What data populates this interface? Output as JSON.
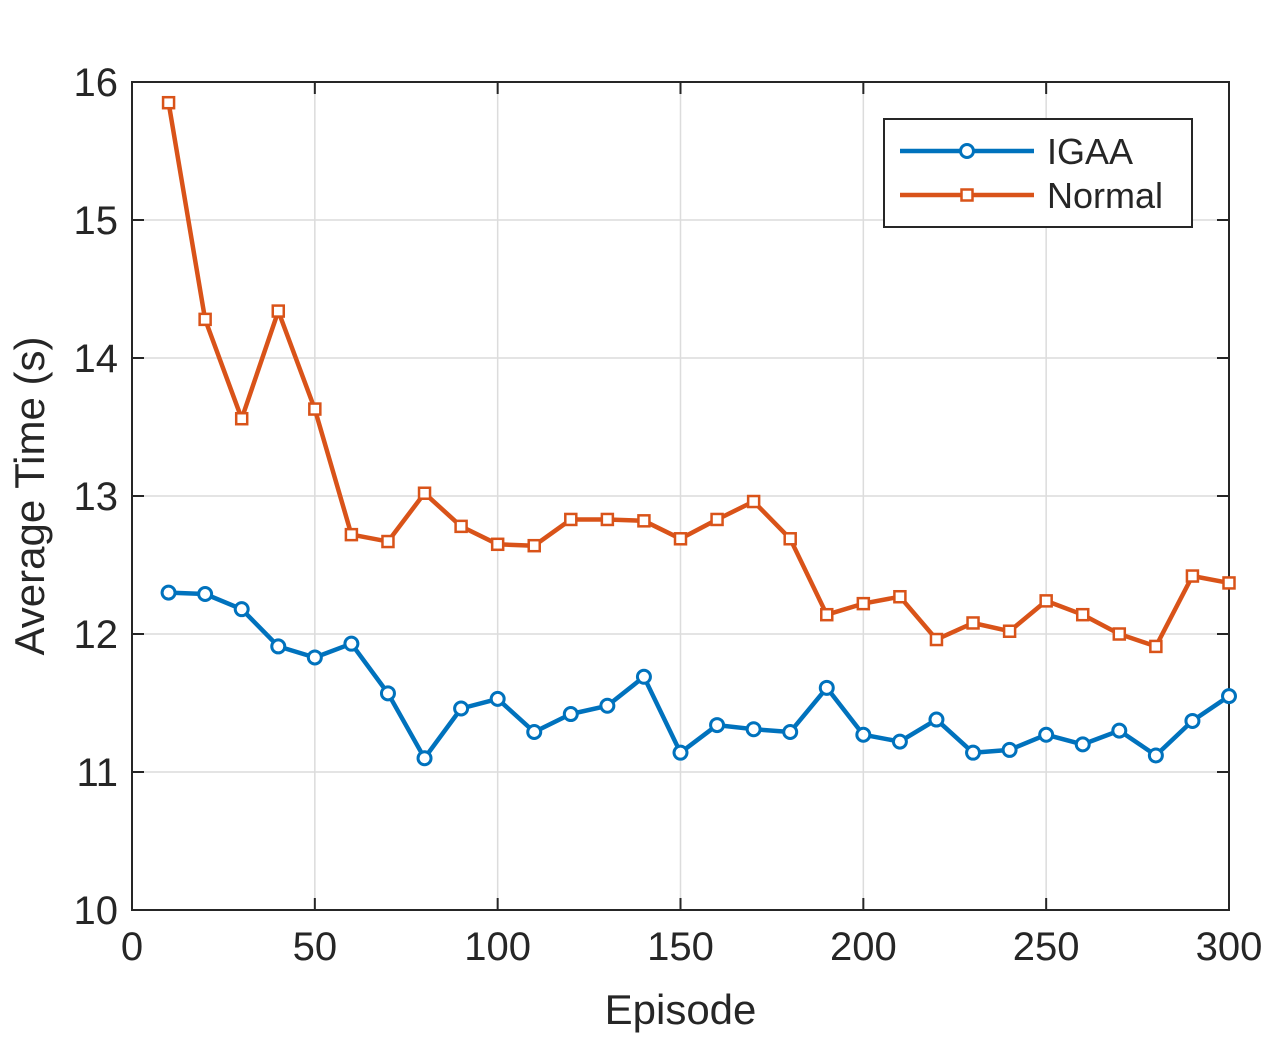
{
  "chart_data": {
    "type": "line",
    "title": "",
    "xlabel": "Episode",
    "ylabel": "Average Time (s)",
    "xlim": [
      0,
      300
    ],
    "ylim": [
      10,
      16
    ],
    "xticks": [
      0,
      50,
      100,
      150,
      200,
      250,
      300
    ],
    "yticks": [
      10,
      11,
      12,
      13,
      14,
      15,
      16
    ],
    "grid": true,
    "legend_position": "top-right",
    "x": [
      10,
      20,
      30,
      40,
      50,
      60,
      70,
      80,
      90,
      100,
      110,
      120,
      130,
      140,
      150,
      160,
      170,
      180,
      190,
      200,
      210,
      220,
      230,
      240,
      250,
      260,
      270,
      280,
      290,
      300
    ],
    "series": [
      {
        "name": "IGAA",
        "color": "#0072BD",
        "marker": "circle",
        "values": [
          12.3,
          12.29,
          12.18,
          11.91,
          11.83,
          11.93,
          11.57,
          11.1,
          11.46,
          11.53,
          11.29,
          11.42,
          11.48,
          11.69,
          11.14,
          11.34,
          11.31,
          11.29,
          11.61,
          11.27,
          11.22,
          11.38,
          11.14,
          11.16,
          11.27,
          11.2,
          11.3,
          11.12,
          11.37,
          11.55
        ]
      },
      {
        "name": "Normal",
        "color": "#D95319",
        "marker": "square",
        "values": [
          15.85,
          14.28,
          13.56,
          14.34,
          13.63,
          12.72,
          12.67,
          13.02,
          12.78,
          12.65,
          12.64,
          12.83,
          12.83,
          12.82,
          12.69,
          12.83,
          12.96,
          12.69,
          12.14,
          12.22,
          12.27,
          11.96,
          12.08,
          12.02,
          12.24,
          12.14,
          12.0,
          11.91,
          12.42,
          12.37
        ]
      }
    ]
  }
}
